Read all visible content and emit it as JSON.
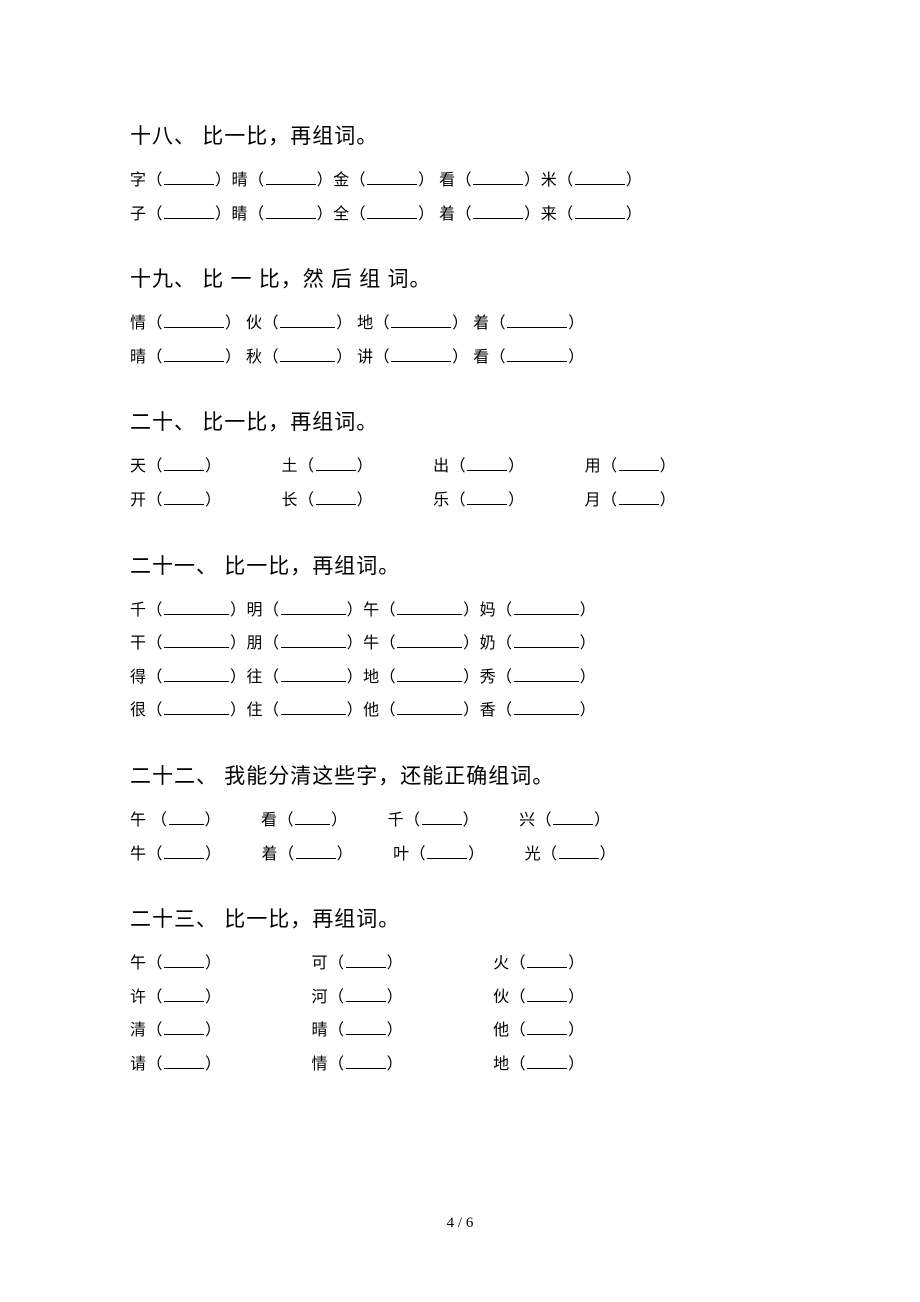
{
  "page_number": "4 / 6",
  "sections": [
    {
      "title": "十八、 比一比，再组词。",
      "rows": [
        [
          {
            "char": "字",
            "blank": "b50"
          },
          {
            "char": "晴",
            "blank": "b50"
          },
          {
            "char": "金",
            "blank": "b50"
          },
          {
            "char": "看",
            "blank": "b50"
          },
          {
            "char": "米",
            "blank": "b50"
          }
        ],
        [
          {
            "char": "子",
            "blank": "b50"
          },
          {
            "char": "睛",
            "blank": "b50"
          },
          {
            "char": "全",
            "blank": "b50"
          },
          {
            "char": "着",
            "blank": "b50"
          },
          {
            "char": "来",
            "blank": "b50"
          }
        ]
      ],
      "layout": "s18"
    },
    {
      "title": "十九、 比 一 比，然 后 组 词。",
      "rows": [
        [
          {
            "char": "情",
            "blank": "b60"
          },
          {
            "char": "伙",
            "blank": "b55"
          },
          {
            "char": "地",
            "blank": "b60"
          },
          {
            "char": "着",
            "blank": "b60"
          }
        ],
        [
          {
            "char": "晴",
            "blank": "b60"
          },
          {
            "char": "秋",
            "blank": "b55"
          },
          {
            "char": "讲",
            "blank": "b60"
          },
          {
            "char": "看",
            "blank": "b60"
          }
        ]
      ],
      "layout": "s19"
    },
    {
      "title": "二十、 比一比，再组词。",
      "rows": [
        [
          {
            "char": "天",
            "blank": "b40"
          },
          {
            "char": "土",
            "blank": "b40"
          },
          {
            "char": "出",
            "blank": "b40"
          },
          {
            "char": "用",
            "blank": "b40"
          }
        ],
        [
          {
            "char": "开",
            "blank": "b40"
          },
          {
            "char": "长",
            "blank": "b40"
          },
          {
            "char": "乐",
            "blank": "b40"
          },
          {
            "char": "月",
            "blank": "b40"
          }
        ]
      ],
      "layout": "s20"
    },
    {
      "title": "二十一、 比一比，再组词。",
      "rows": [
        [
          {
            "char": "千",
            "blank": "b65"
          },
          {
            "char": "明",
            "blank": "b65"
          },
          {
            "char": "午",
            "blank": "b65"
          },
          {
            "char": "妈",
            "blank": "b65"
          }
        ],
        [
          {
            "char": "干",
            "blank": "b65"
          },
          {
            "char": "朋",
            "blank": "b65"
          },
          {
            "char": "牛",
            "blank": "b65"
          },
          {
            "char": "奶",
            "blank": "b65"
          }
        ],
        [
          {
            "char": "得",
            "blank": "b65"
          },
          {
            "char": "往",
            "blank": "b65"
          },
          {
            "char": "地",
            "blank": "b65"
          },
          {
            "char": "秀",
            "blank": "b65"
          }
        ],
        [
          {
            "char": "很",
            "blank": "b65"
          },
          {
            "char": "住",
            "blank": "b65"
          },
          {
            "char": "他",
            "blank": "b65"
          },
          {
            "char": "香",
            "blank": "b65"
          }
        ]
      ],
      "layout": "s21"
    },
    {
      "title": "二十二、 我能分清这些字，还能正确组词。",
      "rows": [
        [
          {
            "char": "午 ",
            "blank": "b35"
          },
          {
            "char": "看",
            "blank": "b35"
          },
          {
            "char": "千",
            "blank": "b40"
          },
          {
            "char": "兴",
            "blank": "b40"
          }
        ],
        [
          {
            "char": "牛",
            "blank": "b40"
          },
          {
            "char": "着",
            "blank": "b40"
          },
          {
            "char": "叶",
            "blank": "b40"
          },
          {
            "char": "光",
            "blank": "b40"
          }
        ]
      ],
      "layout": "s22"
    },
    {
      "title": "二十三、 比一比，再组词。",
      "rows": [
        [
          {
            "char": "午",
            "blank": "b40"
          },
          {
            "char": "可",
            "blank": "b40"
          },
          {
            "char": "火",
            "blank": "b40"
          }
        ],
        [
          {
            "char": "许",
            "blank": "b40"
          },
          {
            "char": "河",
            "blank": "b40"
          },
          {
            "char": "伙",
            "blank": "b40"
          }
        ],
        [
          {
            "char": "清",
            "blank": "b40"
          },
          {
            "char": "晴",
            "blank": "b40"
          },
          {
            "char": "他",
            "blank": "b40"
          }
        ],
        [
          {
            "char": "请",
            "blank": "b40"
          },
          {
            "char": "情",
            "blank": "b40"
          },
          {
            "char": "地",
            "blank": "b40"
          }
        ]
      ],
      "layout": "s23"
    }
  ]
}
